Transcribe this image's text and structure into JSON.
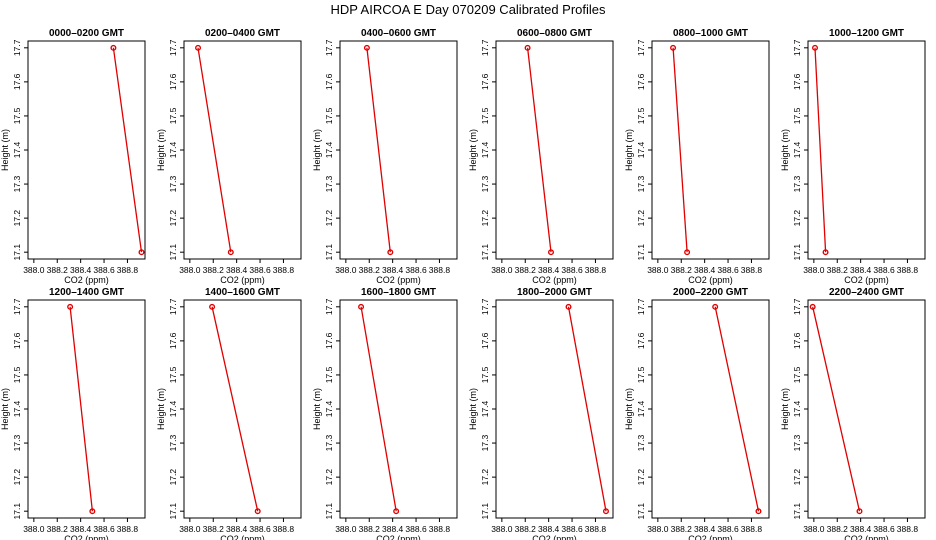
{
  "title": "HDP  AIRCOA E  Day 070209  Calibrated Profiles",
  "colors": {
    "series": "#e00000",
    "axes": "#000000",
    "background": "#ffffff"
  },
  "chart_data": {
    "type": "line",
    "layout": "2 rows x 6 columns",
    "xlabel": "CO2 (ppm)",
    "ylabel": "Height (m)",
    "xlim": [
      387.95,
      388.95
    ],
    "ylim": [
      17.08,
      17.72
    ],
    "xticks": [
      388.0,
      388.2,
      388.4,
      388.6,
      388.8
    ],
    "xtick_labels": [
      "388.0",
      "388.2",
      "388.4",
      "388.6",
      "388.8"
    ],
    "yticks": [
      17.1,
      17.2,
      17.3,
      17.4,
      17.5,
      17.6,
      17.7
    ],
    "ytick_labels": [
      "17.1",
      "17.2",
      "17.3",
      "17.4",
      "17.5",
      "17.6",
      "17.7"
    ],
    "grid": false,
    "legend": "none",
    "panels": [
      {
        "title": "0000–0200 GMT",
        "points": [
          {
            "x": 388.68,
            "y": 17.7
          },
          {
            "x": 388.92,
            "y": 17.1
          }
        ]
      },
      {
        "title": "0200–0400 GMT",
        "points": [
          {
            "x": 388.07,
            "y": 17.7
          },
          {
            "x": 388.35,
            "y": 17.1
          }
        ]
      },
      {
        "title": "0400–0600 GMT",
        "points": [
          {
            "x": 388.18,
            "y": 17.7
          },
          {
            "x": 388.38,
            "y": 17.1
          }
        ]
      },
      {
        "title": "0600–0800 GMT",
        "points": [
          {
            "x": 388.22,
            "y": 17.7
          },
          {
            "x": 388.42,
            "y": 17.1
          }
        ]
      },
      {
        "title": "0800–1000 GMT",
        "points": [
          {
            "x": 388.13,
            "y": 17.7
          },
          {
            "x": 388.25,
            "y": 17.1
          }
        ]
      },
      {
        "title": "1000–1200 GMT",
        "points": [
          {
            "x": 388.01,
            "y": 17.7
          },
          {
            "x": 388.1,
            "y": 17.1
          }
        ]
      },
      {
        "title": "1200–1400 GMT",
        "points": [
          {
            "x": 388.31,
            "y": 17.7
          },
          {
            "x": 388.5,
            "y": 17.1
          }
        ]
      },
      {
        "title": "1400–1600 GMT",
        "points": [
          {
            "x": 388.19,
            "y": 17.7
          },
          {
            "x": 388.58,
            "y": 17.1
          }
        ]
      },
      {
        "title": "1600–1800 GMT",
        "points": [
          {
            "x": 388.13,
            "y": 17.7
          },
          {
            "x": 388.43,
            "y": 17.1
          }
        ]
      },
      {
        "title": "1800–2000 GMT",
        "points": [
          {
            "x": 388.57,
            "y": 17.7
          },
          {
            "x": 388.89,
            "y": 17.1
          }
        ]
      },
      {
        "title": "2000–2200 GMT",
        "points": [
          {
            "x": 388.49,
            "y": 17.7
          },
          {
            "x": 388.86,
            "y": 17.1
          }
        ]
      },
      {
        "title": "2200–2400 GMT",
        "points": [
          {
            "x": 387.99,
            "y": 17.7
          },
          {
            "x": 388.39,
            "y": 17.1
          }
        ]
      }
    ]
  }
}
